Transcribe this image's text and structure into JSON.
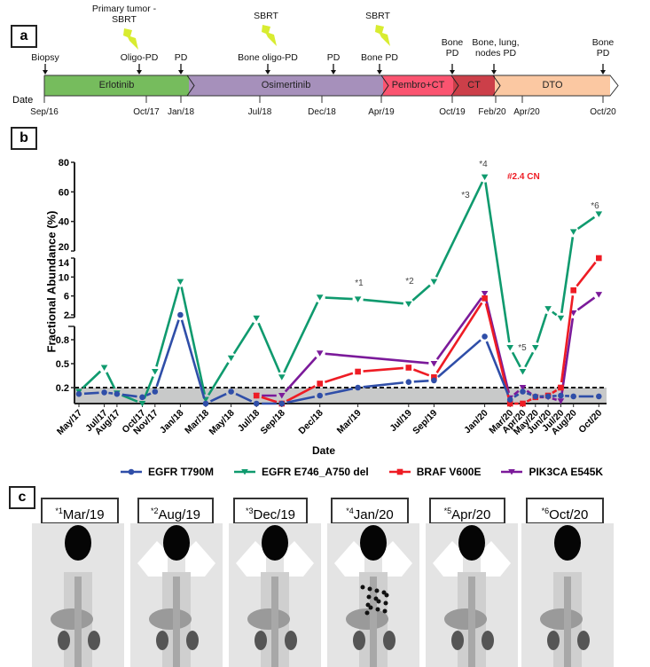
{
  "panel_a": {
    "label": "a",
    "date_label": "Date",
    "events": [
      {
        "text": "Biopsy",
        "date": "Sep/16"
      },
      {
        "text": "Oligo-PD",
        "date": "Oct/17"
      },
      {
        "text": "PD",
        "date": "Jan/18"
      },
      {
        "text": "Bone oligo-PD",
        "date": "Jul/18"
      },
      {
        "text": "PD",
        "date": "Dec/18"
      },
      {
        "text": "Bone PD",
        "date": "Apr/19"
      },
      {
        "text": "Bone PD",
        "date": "Oct/19"
      },
      {
        "text": "Bone, lung, nodes PD",
        "date": "Feb/20"
      },
      {
        "text": "Bone PD",
        "date": "Oct/20"
      }
    ],
    "radiotherapy": [
      {
        "text": "Primary tumor - SBRT",
        "icon": "lightning-bolt-icon"
      },
      {
        "text": "SBRT",
        "icon": "lightning-bolt-icon"
      },
      {
        "text": "SBRT",
        "icon": "lightning-bolt-icon"
      }
    ],
    "treatments": [
      {
        "name": "Erlotinib",
        "color": "#76bc5d"
      },
      {
        "name": "Osimertinib",
        "color": "#a690bb"
      },
      {
        "name": "Pembro+CT",
        "color": "#fb5470"
      },
      {
        "name": "CT",
        "color": "#cc3f49"
      },
      {
        "name": "DTO",
        "color": "#fbc8a2"
      }
    ],
    "date_ticks": [
      "Sep/16",
      "Oct/17",
      "Jan/18",
      "Jul/18",
      "Dec/18",
      "Apr/19",
      "Oct/19",
      "Feb/20",
      "Apr/20",
      "Oct/20"
    ]
  },
  "panel_b": {
    "label": "b"
  },
  "chart_data": {
    "type": "line",
    "xlabel": "Date",
    "ylabel": "Fractional Abundance (%)",
    "y_axis_break": true,
    "y_segments": [
      [
        0,
        0.8
      ],
      [
        2,
        14
      ],
      [
        20,
        80
      ]
    ],
    "y_ticks": [
      "0.2",
      "0.5",
      "0.8",
      "2",
      "6",
      "10",
      "14",
      "20",
      "40",
      "60",
      "80"
    ],
    "threshold": 0.2,
    "categories": [
      "May/17",
      "Jul/17",
      "Aug/17",
      "Oct/17",
      "Nov/17",
      "Jan/18",
      "Mar/18",
      "May/18",
      "Jul/18",
      "Sep/18",
      "Dec/18",
      "Mar/19",
      "Jul/19",
      "Sep/19",
      "Jan/20",
      "Mar/20",
      "Apr/20",
      "May/20",
      "Jun/20",
      "Jul/20",
      "Aug/20",
      "Oct/20"
    ],
    "series": [
      {
        "name": "EGFR T790M",
        "color": "#2f4ea8",
        "marker": "circle",
        "values": [
          0.12,
          0.14,
          0.12,
          0.08,
          0.15,
          2.0,
          0.0,
          0.15,
          0.0,
          0.0,
          0.1,
          0.2,
          0.27,
          0.29,
          0.84,
          0.05,
          0.15,
          0.09,
          0.09,
          0.1,
          0.09,
          0.09
        ]
      },
      {
        "name": "EGFR E746_A750 del",
        "color": "#0f9a6e",
        "marker": "triangle-down",
        "values": [
          0.15,
          0.45,
          0.13,
          0.0,
          0.4,
          9,
          0.05,
          0.57,
          1.3,
          0.33,
          5.7,
          5.3,
          4.3,
          9,
          70,
          0.7,
          0.4,
          0.7,
          3.3,
          1.3,
          33,
          45
        ]
      },
      {
        "name": "BRAF V600E",
        "color": "#ee1c24",
        "marker": "square",
        "values": [
          null,
          null,
          null,
          null,
          null,
          null,
          null,
          null,
          0.1,
          0.0,
          0.25,
          0.4,
          0.45,
          0.33,
          5.5,
          0.0,
          0.0,
          0.08,
          0.1,
          0.2,
          7.2,
          14
        ]
      },
      {
        "name": "PIK3CA E545K",
        "color": "#7b1a9a",
        "marker": "triangle-down",
        "values": [
          null,
          null,
          null,
          null,
          null,
          null,
          null,
          null,
          0.1,
          0.1,
          0.63,
          null,
          null,
          0.5,
          6.5,
          0.07,
          0.2,
          0.08,
          0.08,
          0.03,
          2.4,
          6.3
        ]
      }
    ],
    "annotations": [
      {
        "text": "*1",
        "at": "Mar/19"
      },
      {
        "text": "*2",
        "at": "Jul/19"
      },
      {
        "text": "*3",
        "at": "Jan/20"
      },
      {
        "text": "*4",
        "at": "Jan/20"
      },
      {
        "text": "#2.4 CN",
        "at": "Jan/20",
        "color": "#ee1c24"
      },
      {
        "text": "*5",
        "at": "Apr/20"
      },
      {
        "text": "*6",
        "at": "Oct/20"
      }
    ],
    "legend_position": "bottom"
  },
  "panel_c": {
    "label": "c",
    "scans": [
      {
        "mark": "*1",
        "date": "Mar/19"
      },
      {
        "mark": "*2",
        "date": "Aug/19"
      },
      {
        "mark": "*3",
        "date": "Dec/19"
      },
      {
        "mark": "*4",
        "date": "Jan/20"
      },
      {
        "mark": "*5",
        "date": "Apr/20"
      },
      {
        "mark": "*6",
        "date": "Oct/20"
      }
    ]
  }
}
